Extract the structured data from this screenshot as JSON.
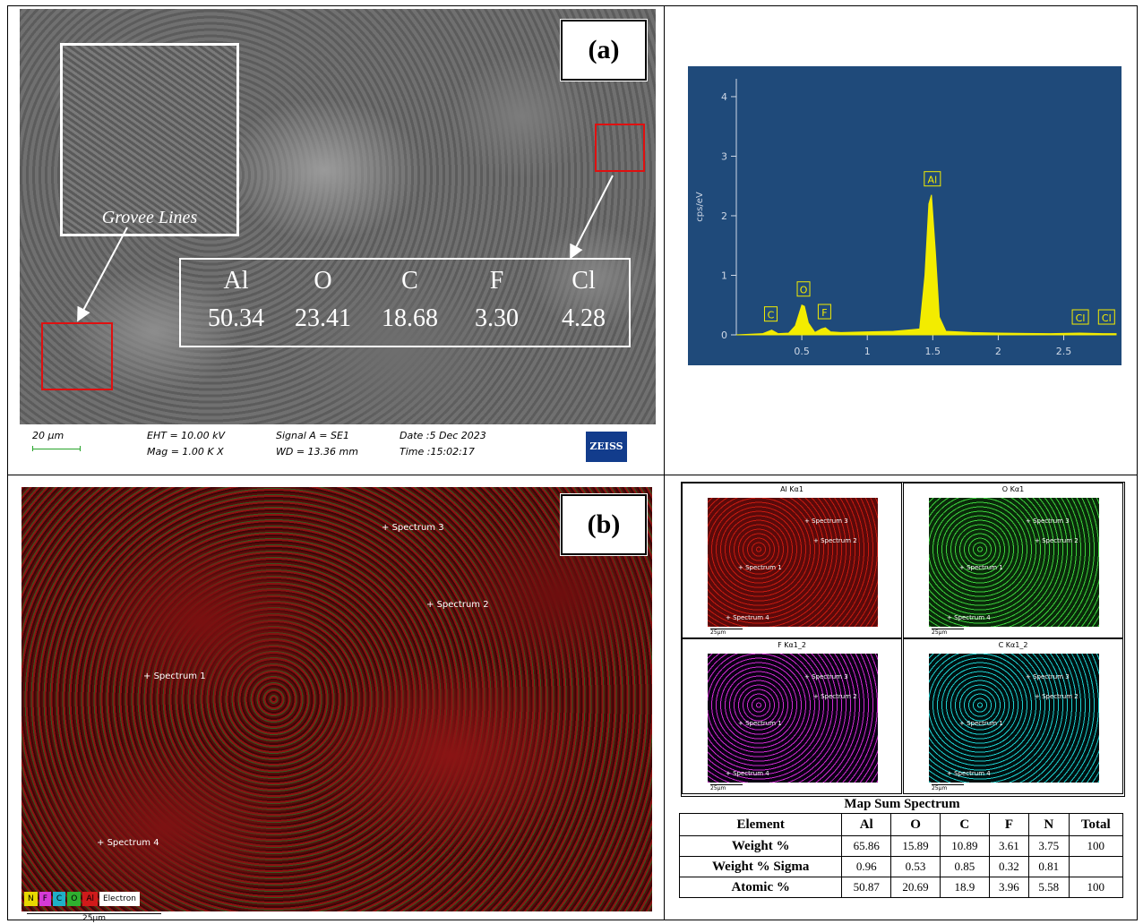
{
  "panel_a": {
    "label": "(a)",
    "inset_caption": "Grovee Lines",
    "composition": [
      {
        "element": "Al",
        "value": "50.34"
      },
      {
        "element": "O",
        "value": "23.41"
      },
      {
        "element": "C",
        "value": "18.68"
      },
      {
        "element": "F",
        "value": "3.30"
      },
      {
        "element": "Cl",
        "value": "4.28"
      }
    ],
    "sem_info": {
      "scale": "20 μm",
      "eht": "EHT = 10.00 kV",
      "mag": "Mag =   1.00 K X",
      "signal": "Signal A = SE1",
      "wd": "WD = 13.36 mm",
      "date": "Date :5 Dec 2023",
      "time": "Time :15:02:17",
      "brand": "ZEISS"
    }
  },
  "chart_data": {
    "type": "line",
    "title": "",
    "xlabel": "",
    "ylabel": "cps/eV",
    "xlim": [
      0.0,
      2.9
    ],
    "ylim": [
      0,
      4.3
    ],
    "x_ticks": [
      "0.5",
      "1",
      "1.5",
      "2",
      "2.5"
    ],
    "y_ticks": [
      "0",
      "1",
      "2",
      "3",
      "4"
    ],
    "grid": false,
    "series": [
      {
        "x": [
          0.0,
          0.2,
          0.27,
          0.32,
          0.4,
          0.45,
          0.5,
          0.52,
          0.55,
          0.6,
          0.65,
          0.68,
          0.72,
          0.8,
          1.0,
          1.2,
          1.4,
          1.44,
          1.47,
          1.49,
          1.52,
          1.55,
          1.6,
          1.8,
          2.0,
          2.4,
          2.62,
          2.8,
          2.9
        ],
        "y": [
          0.0,
          0.02,
          0.08,
          0.02,
          0.03,
          0.15,
          0.5,
          0.48,
          0.2,
          0.04,
          0.1,
          0.12,
          0.05,
          0.04,
          0.05,
          0.06,
          0.1,
          1.0,
          2.2,
          2.35,
          1.4,
          0.3,
          0.06,
          0.04,
          0.03,
          0.02,
          0.03,
          0.02,
          0.02
        ]
      }
    ],
    "peak_labels": [
      {
        "label": "C",
        "x": 0.27,
        "y": 0.08
      },
      {
        "label": "O",
        "x": 0.52,
        "y": 0.5
      },
      {
        "label": "F",
        "x": 0.68,
        "y": 0.12
      },
      {
        "label": "Al",
        "x": 1.49,
        "y": 2.35
      },
      {
        "label": "Cl",
        "x": 2.62,
        "y": 0.03
      },
      {
        "label": "Cl",
        "x": 2.82,
        "y": 0.03
      }
    ]
  },
  "panel_b": {
    "label": "(b)",
    "spectra": [
      "Spectrum 3",
      "Spectrum 2",
      "Spectrum 1",
      "Spectrum 4"
    ],
    "legend": [
      "N",
      "F",
      "C",
      "O",
      "Al",
      "Electron"
    ],
    "legend_colors": [
      "#e8d800",
      "#d63ad6",
      "#1fb0c8",
      "#2fb02f",
      "#d01a1a",
      "#ffffff"
    ],
    "scale": "25μm"
  },
  "maps": [
    {
      "title": "Al Kα1",
      "color": "#c81a10",
      "bg": "#5a0a0a"
    },
    {
      "title": "O Kα1",
      "color": "#3cd23c",
      "bg": "#0a2a0a"
    },
    {
      "title": "F Kα1_2",
      "color": "#d02ad0",
      "bg": "#0a0014"
    },
    {
      "title": "C Kα1_2",
      "color": "#1ed0d0",
      "bg": "#001010"
    }
  ],
  "map_spectra": [
    "Spectrum 3",
    "Spectrum 2",
    "Spectrum 1",
    "Spectrum 4"
  ],
  "map_scale": "25μm",
  "table": {
    "title": "Map Sum Spectrum",
    "headers": [
      "Element",
      "Al",
      "O",
      "C",
      "F",
      "N",
      "Total"
    ],
    "rows": [
      {
        "name": "Weight %",
        "values": [
          "65.86",
          "15.89",
          "10.89",
          "3.61",
          "3.75",
          "100"
        ]
      },
      {
        "name": "Weight % Sigma",
        "values": [
          "0.96",
          "0.53",
          "0.85",
          "0.32",
          "0.81",
          ""
        ]
      },
      {
        "name": "Atomic %",
        "values": [
          "50.87",
          "20.69",
          "18.9",
          "3.96",
          "5.58",
          "100"
        ]
      }
    ]
  }
}
